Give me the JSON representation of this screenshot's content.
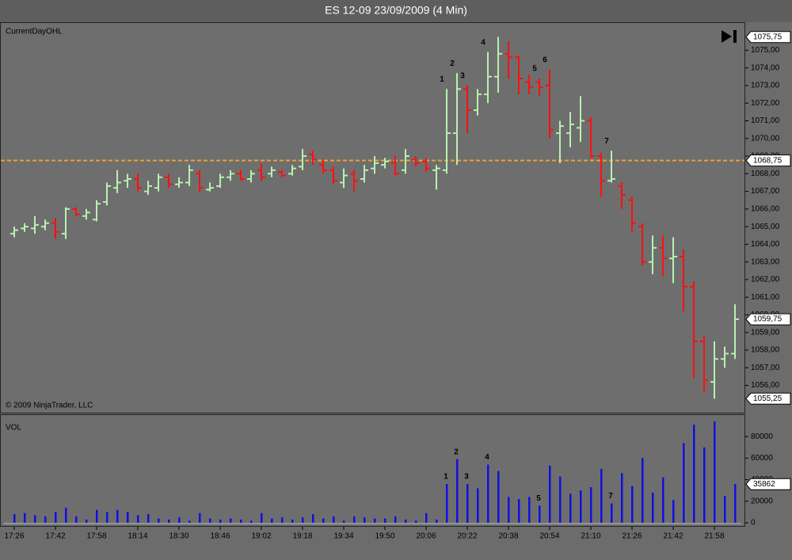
{
  "chart_data": [
    {
      "type": "ohlc",
      "title": "ES 12-09  23/09/2009 (4 Min)",
      "panel_label": "CurrentDayOHL",
      "copyright": "© 2009 NinjaTrader, LLC",
      "categories": [
        "17:26",
        null,
        null,
        null,
        "17:42",
        null,
        null,
        null,
        "17:58",
        null,
        null,
        null,
        "18:14",
        null,
        null,
        null,
        "18:30",
        null,
        null,
        null,
        "18:46",
        null,
        null,
        null,
        "19:02",
        null,
        null,
        null,
        "19:18",
        null,
        null,
        null,
        "19:34",
        null,
        null,
        null,
        "19:50",
        null,
        null,
        null,
        "20:06",
        null,
        null,
        null,
        "20:22",
        null,
        null,
        null,
        "20:38",
        null,
        null,
        null,
        "20:54",
        null,
        null,
        null,
        "21:10",
        null,
        null,
        null,
        "21:26",
        null,
        null,
        null,
        "21:42",
        null,
        null,
        null,
        "21:58",
        null,
        null
      ],
      "open": [
        1064.6,
        1064.9,
        1064.9,
        1065.0,
        1065.2,
        1064.6,
        1066.0,
        1065.6,
        1065.4,
        1066.4,
        1067.2,
        1067.6,
        1067.7,
        1067.0,
        1067.2,
        1067.8,
        1067.4,
        1067.5,
        1068.0,
        1067.1,
        1067.3,
        1067.8,
        1068.0,
        1067.7,
        1068.2,
        1068.0,
        1068.1,
        1068.0,
        1068.4,
        1069.1,
        1068.5,
        1068.2,
        1067.5,
        1068.0,
        1067.7,
        1068.3,
        1068.5,
        1068.6,
        1068.2,
        1068.8,
        1068.7,
        1068.2,
        1068.2,
        1070.3,
        1072.8,
        1071.6,
        1072.5,
        1073.5,
        1074.8,
        1074.6,
        1073.2,
        1073.2,
        1073.0,
        1070.3,
        1070.3,
        1070.6,
        1071.0,
        1069.0,
        1067.6,
        1067.3,
        1066.5,
        1065.0,
        1063.0,
        1063.8,
        1063.2,
        1063.3,
        1061.6,
        1058.5,
        1056.2,
        1057.5,
        1057.8
      ],
      "high": [
        1065.0,
        1065.2,
        1065.6,
        1065.4,
        1065.5,
        1066.1,
        1066.1,
        1066.0,
        1066.5,
        1067.5,
        1068.2,
        1068.0,
        1068.0,
        1067.6,
        1068.0,
        1068.0,
        1067.8,
        1068.5,
        1068.2,
        1067.5,
        1068.0,
        1068.2,
        1068.2,
        1068.2,
        1068.6,
        1068.4,
        1068.2,
        1068.5,
        1069.4,
        1069.3,
        1068.8,
        1068.4,
        1068.3,
        1068.2,
        1068.5,
        1069.0,
        1068.9,
        1069.0,
        1069.4,
        1069.0,
        1068.9,
        1068.5,
        1072.8,
        1073.7,
        1073.0,
        1072.8,
        1074.9,
        1075.75,
        1075.5,
        1074.7,
        1073.6,
        1073.4,
        1073.9,
        1071.0,
        1071.5,
        1072.4,
        1071.2,
        1069.2,
        1069.3,
        1067.5,
        1066.7,
        1065.2,
        1064.5,
        1064.5,
        1064.4,
        1063.7,
        1061.9,
        1058.8,
        1058.5,
        1058.2,
        1060.6
      ],
      "low": [
        1064.4,
        1064.7,
        1064.6,
        1064.8,
        1064.3,
        1064.3,
        1065.6,
        1065.4,
        1065.3,
        1066.2,
        1066.9,
        1067.2,
        1067.0,
        1066.8,
        1067.0,
        1067.2,
        1067.2,
        1067.3,
        1067.0,
        1067.0,
        1067.2,
        1067.6,
        1067.6,
        1067.5,
        1067.6,
        1067.8,
        1067.8,
        1067.9,
        1068.2,
        1068.5,
        1068.0,
        1067.4,
        1067.2,
        1067.0,
        1067.5,
        1068.0,
        1068.3,
        1067.9,
        1068.0,
        1068.4,
        1068.1,
        1067.1,
        1068.0,
        1068.5,
        1070.3,
        1071.3,
        1072.0,
        1072.6,
        1073.4,
        1072.5,
        1072.5,
        1072.4,
        1070.0,
        1068.6,
        1069.5,
        1069.8,
        1068.9,
        1066.7,
        1067.5,
        1066.0,
        1064.7,
        1062.8,
        1062.3,
        1062.2,
        1061.8,
        1060.2,
        1056.4,
        1055.6,
        1055.25,
        1057.0,
        1057.5
      ],
      "close": [
        1064.8,
        1065.0,
        1065.1,
        1065.2,
        1064.7,
        1066.0,
        1065.7,
        1065.8,
        1066.3,
        1067.3,
        1067.5,
        1067.7,
        1067.2,
        1067.3,
        1067.8,
        1067.4,
        1067.5,
        1068.2,
        1067.2,
        1067.2,
        1067.8,
        1068.0,
        1067.7,
        1068.0,
        1067.8,
        1068.2,
        1067.9,
        1068.3,
        1069.0,
        1068.8,
        1068.2,
        1067.6,
        1067.9,
        1067.6,
        1068.2,
        1068.6,
        1068.7,
        1068.0,
        1069.0,
        1068.6,
        1068.3,
        1068.3,
        1070.3,
        1072.8,
        1071.6,
        1072.5,
        1073.5,
        1074.8,
        1074.6,
        1073.4,
        1072.9,
        1072.9,
        1070.5,
        1070.7,
        1070.8,
        1071.0,
        1069.0,
        1067.6,
        1067.7,
        1066.8,
        1065.2,
        1063.0,
        1063.8,
        1063.2,
        1063.3,
        1061.6,
        1058.5,
        1056.3,
        1057.5,
        1057.8,
        1059.75
      ],
      "bar_labels": [
        null,
        null,
        null,
        null,
        null,
        null,
        null,
        null,
        null,
        null,
        null,
        null,
        null,
        null,
        null,
        null,
        null,
        null,
        null,
        null,
        null,
        null,
        null,
        null,
        null,
        null,
        null,
        null,
        null,
        null,
        null,
        null,
        null,
        null,
        null,
        null,
        null,
        null,
        null,
        null,
        null,
        null,
        "1",
        "2",
        "3",
        null,
        "4",
        null,
        null,
        null,
        null,
        "5",
        "6",
        null,
        null,
        null,
        null,
        null,
        "7",
        null,
        null,
        null,
        null,
        null,
        null,
        null,
        null,
        null,
        null,
        null,
        null
      ],
      "up_color": "#b8f0b0",
      "down_color": "#ff1010",
      "ylim": [
        1054.5,
        1076.5
      ],
      "yticks": [
        {
          "value": 1056,
          "label": "1056,00"
        },
        {
          "value": 1057,
          "label": "1057,00"
        },
        {
          "value": 1058,
          "label": "1058,00"
        },
        {
          "value": 1059,
          "label": "1059,00"
        },
        {
          "value": 1060,
          "label": "1060,00"
        },
        {
          "value": 1061,
          "label": "1061,00"
        },
        {
          "value": 1062,
          "label": "1062,00"
        },
        {
          "value": 1063,
          "label": "1063,00"
        },
        {
          "value": 1064,
          "label": "1064,00"
        },
        {
          "value": 1065,
          "label": "1065,00"
        },
        {
          "value": 1066,
          "label": "1066,00"
        },
        {
          "value": 1067,
          "label": "1067,00"
        },
        {
          "value": 1068,
          "label": "1068,00"
        },
        {
          "value": 1069,
          "label": "1069,00"
        },
        {
          "value": 1070,
          "label": "1070,00"
        },
        {
          "value": 1071,
          "label": "1071,00"
        },
        {
          "value": 1072,
          "label": "1072,00"
        },
        {
          "value": 1073,
          "label": "1073,00"
        },
        {
          "value": 1074,
          "label": "1074,00"
        },
        {
          "value": 1075,
          "label": "1075,00"
        }
      ],
      "hline": 1068.75,
      "hline_color": "#f0a030",
      "axis_markers": [
        {
          "value": 1075.75,
          "label": "1075,75"
        },
        {
          "value": 1068.75,
          "label": "1068,75"
        },
        {
          "value": 1059.75,
          "label": "1059,75"
        },
        {
          "value": 1055.25,
          "label": "1055,25"
        }
      ]
    },
    {
      "type": "bar",
      "panel_label": "VOL",
      "color": "#1010e0",
      "values": [
        8000,
        9000,
        7000,
        6000,
        10000,
        14000,
        6000,
        3000,
        12000,
        10000,
        12000,
        10000,
        7000,
        8000,
        4000,
        3000,
        5000,
        2000,
        9000,
        4000,
        3000,
        4000,
        3000,
        2000,
        9000,
        4000,
        5000,
        3000,
        5000,
        8000,
        4000,
        6000,
        2000,
        6000,
        5000,
        4000,
        4000,
        6000,
        3000,
        2000,
        9000,
        3000,
        36000,
        59000,
        36000,
        32000,
        54000,
        48000,
        24000,
        22000,
        24000,
        16000,
        53000,
        43000,
        27000,
        30000,
        33000,
        50000,
        18000,
        46000,
        34000,
        60000,
        28000,
        42000,
        21000,
        74000,
        91000,
        70000,
        94000,
        25000,
        35862
      ],
      "bar_labels": [
        null,
        null,
        null,
        null,
        null,
        null,
        null,
        null,
        null,
        null,
        null,
        null,
        null,
        null,
        null,
        null,
        null,
        null,
        null,
        null,
        null,
        null,
        null,
        null,
        null,
        null,
        null,
        null,
        null,
        null,
        null,
        null,
        null,
        null,
        null,
        null,
        null,
        null,
        null,
        null,
        null,
        null,
        "1",
        "2",
        "3",
        null,
        "4",
        null,
        null,
        null,
        null,
        "5",
        null,
        null,
        null,
        null,
        null,
        null,
        "7",
        null,
        null,
        null,
        null,
        null,
        null,
        null,
        null,
        null,
        null,
        null,
        null
      ],
      "ylim": [
        0,
        97000
      ],
      "yticks": [
        0,
        20000,
        40000,
        60000,
        80000
      ],
      "axis_markers": [
        35862
      ]
    }
  ]
}
